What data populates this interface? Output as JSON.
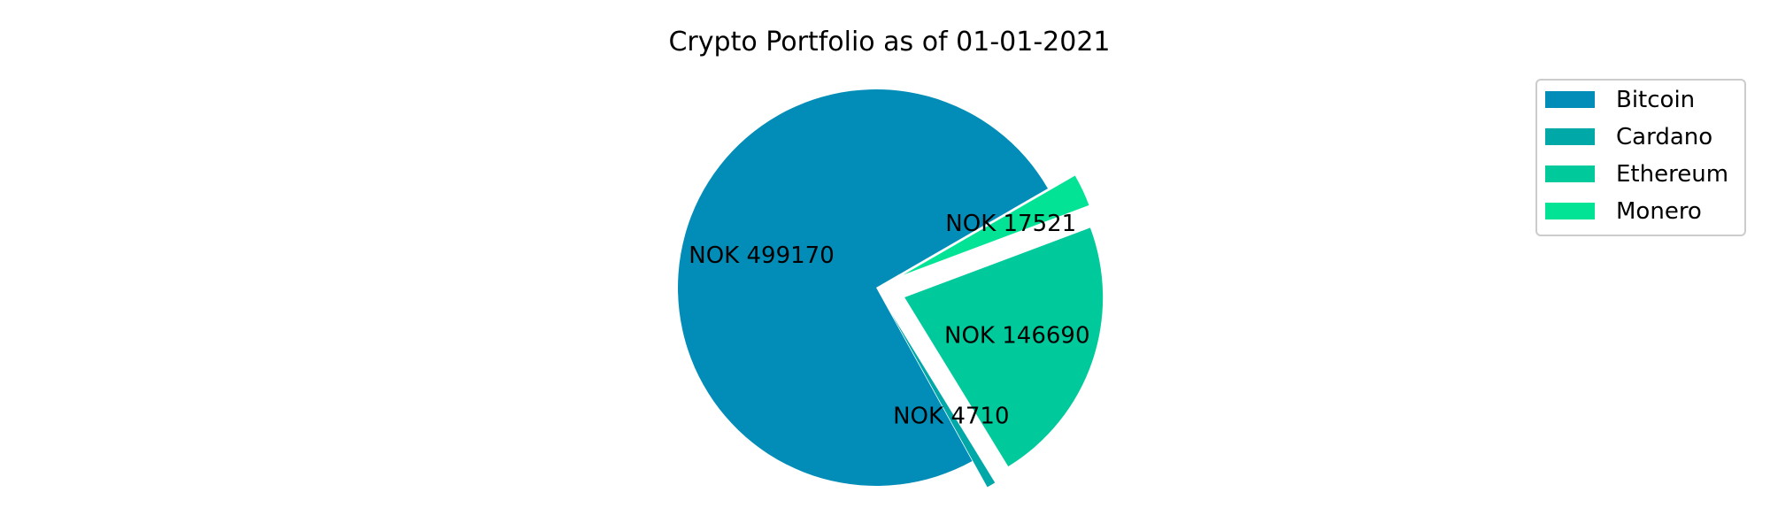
{
  "chart_data": {
    "type": "pie",
    "title": "Crypto Portfolio as of 01-01-2021",
    "categories": [
      "Bitcoin",
      "Cardano",
      "Ethereum",
      "Monero"
    ],
    "values": [
      499170,
      4710,
      146690,
      17521
    ],
    "labels": [
      "NOK 499170",
      "NOK 4710",
      "NOK 146690",
      "NOK 17521"
    ],
    "colors": [
      "#028db8",
      "#00a8a8",
      "#00c99c",
      "#03e396"
    ],
    "exploded": [
      false,
      true,
      true,
      true
    ],
    "start_angle_deg": 30,
    "direction": "counterclockwise",
    "legend": {
      "position": "top-right",
      "entries": [
        "Bitcoin",
        "Cardano",
        "Ethereum",
        "Monero"
      ]
    }
  }
}
